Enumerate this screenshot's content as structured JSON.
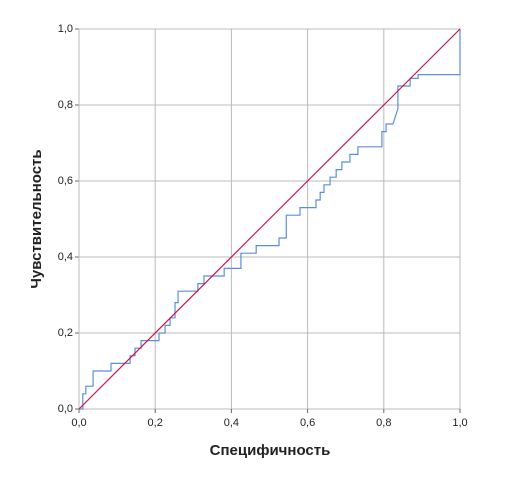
{
  "chart_data": {
    "type": "line",
    "x_label": "Специфичность",
    "y_label": "Чувствительность",
    "xlim": [
      0,
      1
    ],
    "ylim": [
      0,
      1
    ],
    "xticks": [
      {
        "value": 0,
        "label": "0,0"
      },
      {
        "value": 0.2,
        "label": "0,2"
      },
      {
        "value": 0.4,
        "label": "0,4"
      },
      {
        "value": 0.6,
        "label": "0,6"
      },
      {
        "value": 0.8,
        "label": "0,8"
      },
      {
        "value": 1,
        "label": "1,0"
      }
    ],
    "yticks": [
      {
        "value": 0,
        "label": "0,0"
      },
      {
        "value": 0.2,
        "label": "0,2"
      },
      {
        "value": 0.4,
        "label": "0,4"
      },
      {
        "value": 0.6,
        "label": "0,6"
      },
      {
        "value": 0.8,
        "label": "0,8"
      },
      {
        "value": 1,
        "label": "1,0"
      }
    ],
    "grid": true,
    "series": [
      {
        "color": "#5b8fd9",
        "x": [
          0,
          0.01,
          0.01,
          0.018,
          0.018,
          0.037,
          0.037,
          0.084,
          0.084,
          0.134,
          0.134,
          0.147,
          0.147,
          0.163,
          0.163,
          0.21,
          0.21,
          0.226,
          0.226,
          0.239,
          0.239,
          0.252,
          0.252,
          0.26,
          0.26,
          0.312,
          0.312,
          0.328,
          0.328,
          0.381,
          0.381,
          0.425,
          0.425,
          0.465,
          0.465,
          0.525,
          0.525,
          0.544,
          0.544,
          0.58,
          0.58,
          0.622,
          0.622,
          0.633,
          0.633,
          0.643,
          0.643,
          0.659,
          0.659,
          0.675,
          0.675,
          0.69,
          0.69,
          0.711,
          0.711,
          0.732,
          0.732,
          0.795,
          0.795,
          0.806,
          0.806,
          0.824,
          0.837,
          0.837,
          0.869,
          0.869,
          0.89,
          0.89,
          1,
          1
        ],
        "values": [
          0,
          0,
          0.04,
          0.04,
          0.06,
          0.06,
          0.1,
          0.1,
          0.12,
          0.12,
          0.14,
          0.14,
          0.16,
          0.16,
          0.18,
          0.18,
          0.2,
          0.2,
          0.22,
          0.22,
          0.24,
          0.24,
          0.28,
          0.28,
          0.31,
          0.31,
          0.33,
          0.33,
          0.35,
          0.35,
          0.37,
          0.37,
          0.41,
          0.41,
          0.43,
          0.43,
          0.45,
          0.45,
          0.51,
          0.51,
          0.53,
          0.53,
          0.55,
          0.55,
          0.57,
          0.57,
          0.59,
          0.59,
          0.61,
          0.61,
          0.63,
          0.63,
          0.65,
          0.65,
          0.67,
          0.67,
          0.69,
          0.69,
          0.73,
          0.73,
          0.75,
          0.75,
          0.79,
          0.85,
          0.85,
          0.87,
          0.87,
          0.88,
          0.88,
          1
        ]
      },
      {
        "color": "#c8174a",
        "x": [
          0,
          1
        ],
        "values": [
          0,
          1
        ]
      }
    ]
  }
}
